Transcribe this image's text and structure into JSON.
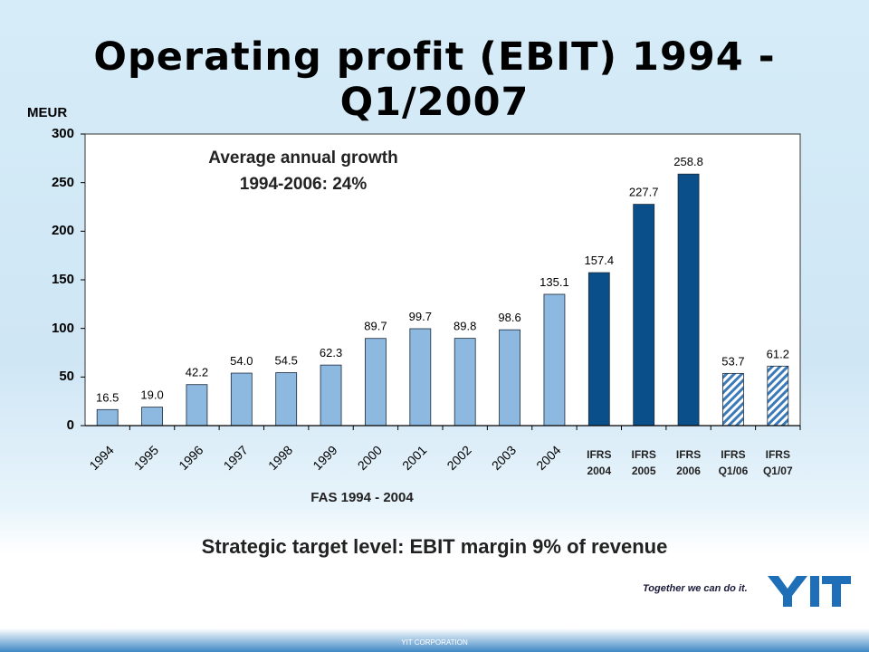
{
  "title": "Operating profit (EBIT) 1994 - Q1/2007",
  "footer": "YIT CORPORATION",
  "slogan": "Together we can do it.",
  "logo_text": "YIT",
  "colors": {
    "fas": "#8db8e0",
    "ifrs": "#0b4f8a",
    "quarter": "#3a7ab8"
  },
  "chart_data": {
    "type": "bar",
    "ylabel": "MEUR",
    "ylim": [
      0,
      300
    ],
    "yticks": [
      0,
      50,
      100,
      150,
      200,
      250,
      300
    ],
    "grid": false,
    "categories": [
      "1994",
      "1995",
      "1996",
      "1997",
      "1998",
      "1999",
      "2000",
      "2001",
      "2002",
      "2003",
      "2004",
      "IFRS 2004",
      "IFRS 2005",
      "IFRS 2006",
      "IFRS Q1/06",
      "IFRS Q1/07"
    ],
    "values": [
      16.5,
      19.0,
      42.2,
      54.0,
      54.5,
      62.3,
      89.7,
      99.7,
      89.8,
      98.6,
      135.1,
      157.4,
      227.7,
      258.8,
      53.7,
      61.2
    ],
    "value_labels": [
      "16.5",
      "19.0",
      "42.2",
      "54.0",
      "54.5",
      "62.3",
      "89.7",
      "99.7",
      "89.8",
      "98.6",
      "135.1",
      "157.4",
      "227.7",
      "258.8",
      "53.7",
      "61.2"
    ],
    "groups": [
      "fas",
      "fas",
      "fas",
      "fas",
      "fas",
      "fas",
      "fas",
      "fas",
      "fas",
      "fas",
      "fas",
      "ifrs",
      "ifrs",
      "ifrs",
      "quarter",
      "quarter"
    ],
    "annotation": "Average annual growth\n1994-2006: 24%",
    "group_label": "FAS 1994 - 2004",
    "note": "Strategic target level: EBIT margin 9% of revenue"
  }
}
